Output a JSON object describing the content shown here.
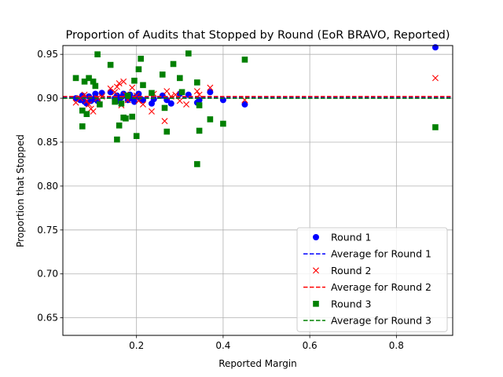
{
  "chart_data": {
    "type": "scatter",
    "title": "Proportion of Audits that Stopped by Round (EoR BRAVO, Reported)",
    "xlabel": "Reported Margin",
    "ylabel": "Proportion that Stopped",
    "xlim": [
      0.03,
      0.93
    ],
    "ylim": [
      0.63,
      0.96
    ],
    "xticks": [
      0.2,
      0.4,
      0.6,
      0.8
    ],
    "xtick_labels": [
      "0.2",
      "0.4",
      "0.6",
      "0.8"
    ],
    "yticks": [
      0.65,
      0.7,
      0.75,
      0.8,
      0.85,
      0.9,
      0.95
    ],
    "ytick_labels": [
      "0.65",
      "0.70",
      "0.75",
      "0.80",
      "0.85",
      "0.90",
      "0.95"
    ],
    "grid": true,
    "legend_position": "lower-right",
    "series": [
      {
        "name": "Round 1",
        "marker": "circle",
        "color": "#0000ff",
        "points": [
          [
            0.06,
            0.9
          ],
          [
            0.07,
            0.898
          ],
          [
            0.075,
            0.903
          ],
          [
            0.08,
            0.896
          ],
          [
            0.085,
            0.894
          ],
          [
            0.09,
            0.902
          ],
          [
            0.095,
            0.897
          ],
          [
            0.1,
            0.899
          ],
          [
            0.105,
            0.905
          ],
          [
            0.11,
            0.897
          ],
          [
            0.12,
            0.906
          ],
          [
            0.14,
            0.907
          ],
          [
            0.15,
            0.9
          ],
          [
            0.155,
            0.903
          ],
          [
            0.16,
            0.897
          ],
          [
            0.165,
            0.901
          ],
          [
            0.17,
            0.905
          ],
          [
            0.175,
            0.903
          ],
          [
            0.18,
            0.898
          ],
          [
            0.185,
            0.904
          ],
          [
            0.19,
            0.9
          ],
          [
            0.195,
            0.896
          ],
          [
            0.2,
            0.902
          ],
          [
            0.205,
            0.905
          ],
          [
            0.21,
            0.899
          ],
          [
            0.215,
            0.898
          ],
          [
            0.235,
            0.894
          ],
          [
            0.24,
            0.899
          ],
          [
            0.26,
            0.903
          ],
          [
            0.27,
            0.898
          ],
          [
            0.28,
            0.894
          ],
          [
            0.3,
            0.905
          ],
          [
            0.32,
            0.904
          ],
          [
            0.34,
            0.895
          ],
          [
            0.345,
            0.898
          ],
          [
            0.37,
            0.907
          ],
          [
            0.4,
            0.898
          ],
          [
            0.45,
            0.893
          ],
          [
            0.89,
            0.958
          ]
        ]
      },
      {
        "name": "Average for Round 1",
        "line": "dashed",
        "color": "#0000ff",
        "y": 0.901
      },
      {
        "name": "Round 2",
        "marker": "x",
        "color": "#ff0000",
        "points": [
          [
            0.06,
            0.895
          ],
          [
            0.07,
            0.9
          ],
          [
            0.08,
            0.904
          ],
          [
            0.085,
            0.897
          ],
          [
            0.09,
            0.893
          ],
          [
            0.095,
            0.888
          ],
          [
            0.1,
            0.885
          ],
          [
            0.11,
            0.9
          ],
          [
            0.12,
            0.902
          ],
          [
            0.14,
            0.911
          ],
          [
            0.15,
            0.907
          ],
          [
            0.155,
            0.913
          ],
          [
            0.16,
            0.917
          ],
          [
            0.165,
            0.892
          ],
          [
            0.17,
            0.919
          ],
          [
            0.175,
            0.904
          ],
          [
            0.18,
            0.898
          ],
          [
            0.19,
            0.912
          ],
          [
            0.2,
            0.903
          ],
          [
            0.205,
            0.897
          ],
          [
            0.215,
            0.893
          ],
          [
            0.235,
            0.885
          ],
          [
            0.24,
            0.905
          ],
          [
            0.265,
            0.874
          ],
          [
            0.27,
            0.908
          ],
          [
            0.28,
            0.902
          ],
          [
            0.29,
            0.904
          ],
          [
            0.3,
            0.897
          ],
          [
            0.315,
            0.893
          ],
          [
            0.34,
            0.908
          ],
          [
            0.345,
            0.904
          ],
          [
            0.37,
            0.912
          ],
          [
            0.45,
            0.898
          ],
          [
            0.89,
            0.923
          ]
        ]
      },
      {
        "name": "Average for Round 2",
        "line": "dashed",
        "color": "#ff0000",
        "y": 0.902
      },
      {
        "name": "Round 3",
        "marker": "square",
        "color": "#008000",
        "points": [
          [
            0.06,
            0.923
          ],
          [
            0.075,
            0.886
          ],
          [
            0.075,
            0.868
          ],
          [
            0.08,
            0.919
          ],
          [
            0.085,
            0.882
          ],
          [
            0.09,
            0.923
          ],
          [
            0.1,
            0.919
          ],
          [
            0.105,
            0.914
          ],
          [
            0.11,
            0.95
          ],
          [
            0.115,
            0.893
          ],
          [
            0.14,
            0.938
          ],
          [
            0.15,
            0.896
          ],
          [
            0.155,
            0.853
          ],
          [
            0.16,
            0.869
          ],
          [
            0.165,
            0.894
          ],
          [
            0.17,
            0.878
          ],
          [
            0.175,
            0.877
          ],
          [
            0.18,
            0.903
          ],
          [
            0.19,
            0.879
          ],
          [
            0.195,
            0.92
          ],
          [
            0.2,
            0.857
          ],
          [
            0.205,
            0.933
          ],
          [
            0.21,
            0.945
          ],
          [
            0.215,
            0.915
          ],
          [
            0.235,
            0.906
          ],
          [
            0.26,
            0.927
          ],
          [
            0.265,
            0.889
          ],
          [
            0.27,
            0.862
          ],
          [
            0.285,
            0.939
          ],
          [
            0.3,
            0.923
          ],
          [
            0.305,
            0.907
          ],
          [
            0.32,
            0.951
          ],
          [
            0.34,
            0.918
          ],
          [
            0.345,
            0.863
          ],
          [
            0.34,
            0.825
          ],
          [
            0.345,
            0.892
          ],
          [
            0.37,
            0.876
          ],
          [
            0.4,
            0.871
          ],
          [
            0.45,
            0.944
          ],
          [
            0.89,
            0.867
          ]
        ]
      },
      {
        "name": "Average for Round 3",
        "line": "dashed",
        "color": "#008000",
        "y": 0.9
      }
    ]
  }
}
